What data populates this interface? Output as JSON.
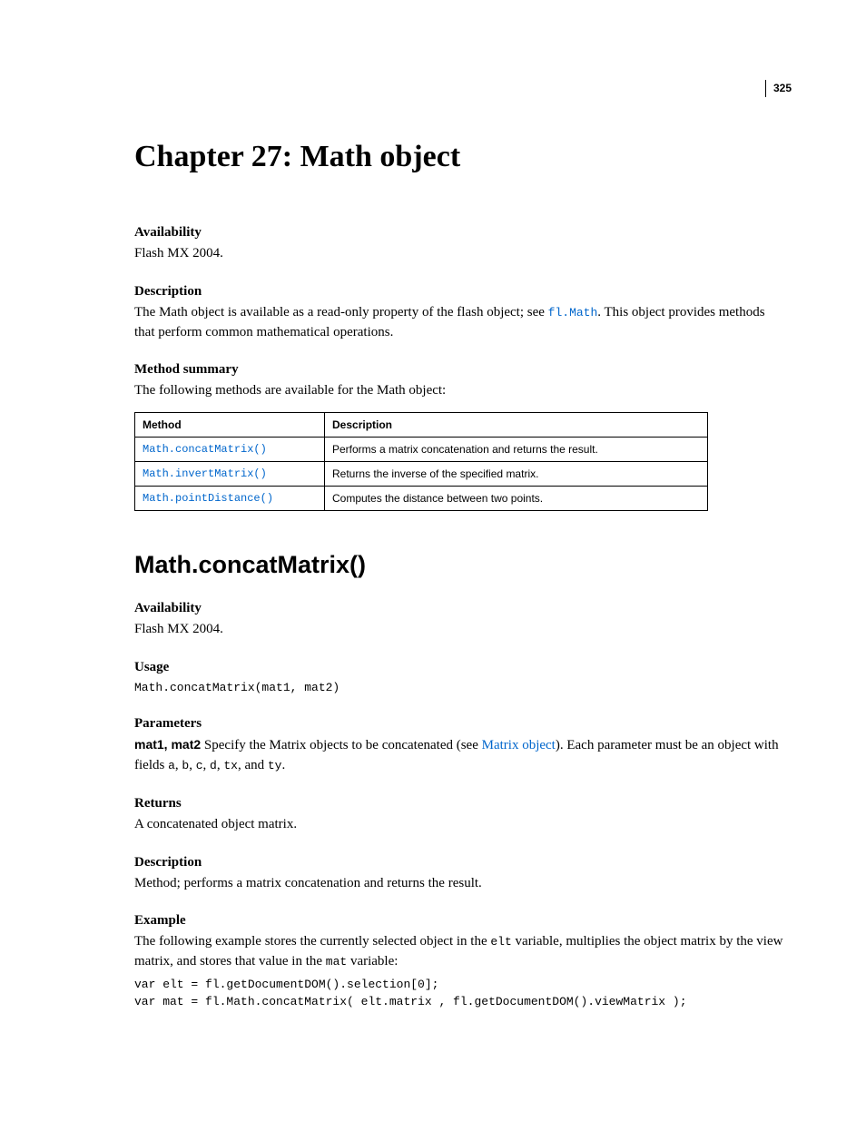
{
  "page_number": "325",
  "chapter": {
    "title": "Chapter 27: Math object"
  },
  "intro": {
    "availability": {
      "heading": "Availability",
      "text": "Flash MX 2004."
    },
    "description": {
      "heading": "Description",
      "pre": "The Math object is available as a read-only property of the flash object; see ",
      "link": "fl.Math",
      "post": ". This object provides methods that perform common mathematical operations."
    },
    "method_summary": {
      "heading": "Method summary",
      "intro": "The following methods are available for the Math object:",
      "columns": {
        "method": "Method",
        "description": "Description"
      },
      "rows": [
        {
          "method": "Math.concatMatrix()",
          "description": "Performs a matrix concatenation and returns the result."
        },
        {
          "method": "Math.invertMatrix()",
          "description": "Returns the inverse of the specified matrix."
        },
        {
          "method": "Math.pointDistance()",
          "description": "Computes the distance between two points."
        }
      ]
    }
  },
  "section": {
    "title": "Math.concatMatrix()",
    "availability": {
      "heading": "Availability",
      "text": "Flash MX 2004."
    },
    "usage": {
      "heading": "Usage",
      "code": "Math.concatMatrix(mat1, mat2)"
    },
    "parameters": {
      "heading": "Parameters",
      "label": "mat1, mat2",
      "pre_link": "   Specify the Matrix objects to be concatenated (see ",
      "link": "Matrix object",
      "post_link": "). Each parameter must be an object with fields ",
      "f1": "a",
      "c1": ", ",
      "f2": "b",
      "c2": ", ",
      "f3": "c",
      "c3": ", ",
      "f4": "d",
      "c4": ", ",
      "f5": "tx",
      "c5": ", and ",
      "f6": "ty",
      "end": "."
    },
    "returns": {
      "heading": "Returns",
      "text": "A concatenated object matrix."
    },
    "description": {
      "heading": "Description",
      "text": "Method; performs a matrix concatenation and returns the result."
    },
    "example": {
      "heading": "Example",
      "pre": "The following example stores the currently selected object in the ",
      "var1": "elt",
      "mid": " variable, multiplies the object matrix by the view matrix, and stores that value in the ",
      "var2": "mat",
      "post": " variable:",
      "code": "var elt = fl.getDocumentDOM().selection[0];\nvar mat = fl.Math.concatMatrix( elt.matrix , fl.getDocumentDOM().viewMatrix );"
    }
  }
}
